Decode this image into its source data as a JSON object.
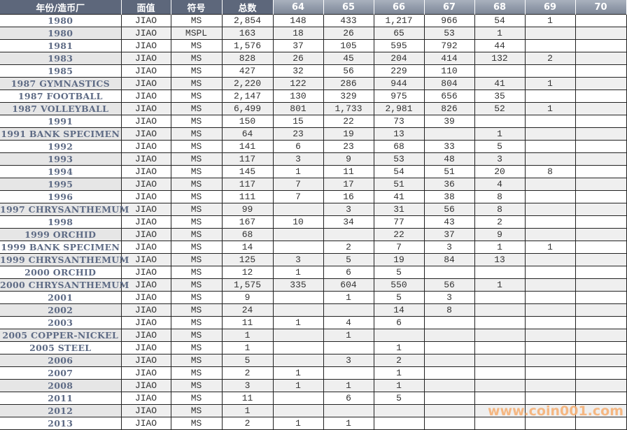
{
  "table": {
    "headers": [
      "年份/造币厂",
      "面值",
      "符号",
      "总数",
      "64",
      "65",
      "66",
      "67",
      "68",
      "69",
      "70"
    ],
    "rows": [
      [
        "1980",
        "JIAO",
        "MS",
        "2,854",
        "148",
        "433",
        "1,217",
        "966",
        "54",
        "1",
        ""
      ],
      [
        "1980",
        "JIAO",
        "MSPL",
        "163",
        "18",
        "26",
        "65",
        "53",
        "1",
        "",
        ""
      ],
      [
        "1981",
        "JIAO",
        "MS",
        "1,576",
        "37",
        "105",
        "595",
        "792",
        "44",
        "",
        ""
      ],
      [
        "1983",
        "JIAO",
        "MS",
        "828",
        "26",
        "45",
        "204",
        "414",
        "132",
        "2",
        ""
      ],
      [
        "1985",
        "JIAO",
        "MS",
        "427",
        "32",
        "56",
        "229",
        "110",
        "",
        "",
        ""
      ],
      [
        "1987 GYMNASTICS",
        "JIAO",
        "MS",
        "2,220",
        "122",
        "286",
        "944",
        "804",
        "41",
        "1",
        ""
      ],
      [
        "1987 FOOTBALL",
        "JIAO",
        "MS",
        "2,147",
        "130",
        "329",
        "975",
        "656",
        "35",
        "",
        ""
      ],
      [
        "1987 VOLLEYBALL",
        "JIAO",
        "MS",
        "6,499",
        "801",
        "1,733",
        "2,981",
        "826",
        "52",
        "1",
        ""
      ],
      [
        "1991",
        "JIAO",
        "MS",
        "150",
        "15",
        "22",
        "73",
        "39",
        "",
        "",
        ""
      ],
      [
        "1991 BANK SPECIMEN",
        "JIAO",
        "MS",
        "64",
        "23",
        "19",
        "13",
        "",
        "1",
        "",
        ""
      ],
      [
        "1992",
        "JIAO",
        "MS",
        "141",
        "6",
        "23",
        "68",
        "33",
        "5",
        "",
        ""
      ],
      [
        "1993",
        "JIAO",
        "MS",
        "117",
        "3",
        "9",
        "53",
        "48",
        "3",
        "",
        ""
      ],
      [
        "1994",
        "JIAO",
        "MS",
        "145",
        "1",
        "11",
        "54",
        "51",
        "20",
        "8",
        ""
      ],
      [
        "1995",
        "JIAO",
        "MS",
        "117",
        "7",
        "17",
        "51",
        "36",
        "4",
        "",
        ""
      ],
      [
        "1996",
        "JIAO",
        "MS",
        "111",
        "7",
        "16",
        "41",
        "38",
        "8",
        "",
        ""
      ],
      [
        "1997 CHRYSANTHEMUM",
        "JIAO",
        "MS",
        "99",
        "",
        "3",
        "31",
        "56",
        "8",
        "",
        ""
      ],
      [
        "1998",
        "JIAO",
        "MS",
        "167",
        "10",
        "34",
        "77",
        "43",
        "2",
        "",
        ""
      ],
      [
        "1999 ORCHID",
        "JIAO",
        "MS",
        "68",
        "",
        "",
        "22",
        "37",
        "9",
        "",
        ""
      ],
      [
        "1999 BANK SPECIMEN",
        "JIAO",
        "MS",
        "14",
        "",
        "2",
        "7",
        "3",
        "1",
        "1",
        ""
      ],
      [
        "1999 CHRYSANTHEMUM",
        "JIAO",
        "MS",
        "125",
        "3",
        "5",
        "19",
        "84",
        "13",
        "",
        ""
      ],
      [
        "2000 ORCHID",
        "JIAO",
        "MS",
        "12",
        "1",
        "6",
        "5",
        "",
        "",
        "",
        ""
      ],
      [
        "2000 CHRYSANTHEMUM",
        "JIAO",
        "MS",
        "1,575",
        "335",
        "604",
        "550",
        "56",
        "1",
        "",
        ""
      ],
      [
        "2001",
        "JIAO",
        "MS",
        "9",
        "",
        "1",
        "5",
        "3",
        "",
        "",
        ""
      ],
      [
        "2002",
        "JIAO",
        "MS",
        "24",
        "",
        "",
        "14",
        "8",
        "",
        "",
        ""
      ],
      [
        "2003",
        "JIAO",
        "MS",
        "11",
        "1",
        "4",
        "6",
        "",
        "",
        "",
        ""
      ],
      [
        "2005 COPPER-NICKEL",
        "JIAO",
        "MS",
        "1",
        "",
        "1",
        "",
        "",
        "",
        "",
        ""
      ],
      [
        "2005 STEEL",
        "JIAO",
        "MS",
        "1",
        "",
        "",
        "1",
        "",
        "",
        "",
        ""
      ],
      [
        "2006",
        "JIAO",
        "MS",
        "5",
        "",
        "3",
        "2",
        "",
        "",
        "",
        ""
      ],
      [
        "2007",
        "JIAO",
        "MS",
        "2",
        "1",
        "",
        "1",
        "",
        "",
        "",
        ""
      ],
      [
        "2008",
        "JIAO",
        "MS",
        "3",
        "1",
        "1",
        "1",
        "",
        "",
        "",
        ""
      ],
      [
        "2011",
        "JIAO",
        "MS",
        "11",
        "",
        "6",
        "5",
        "",
        "",
        "",
        ""
      ],
      [
        "2012",
        "JIAO",
        "MS",
        "1",
        "",
        "",
        "",
        "",
        "",
        "",
        ""
      ],
      [
        "2013",
        "JIAO",
        "MS",
        "2",
        "1",
        "1",
        "",
        "",
        "",
        "",
        ""
      ]
    ]
  },
  "watermark": "www.coin001.com",
  "colors": {
    "header_dark": "#5d677b",
    "header_light": "#8f98a7",
    "name_text": "#5e6b85",
    "watermark": "#f6b277"
  }
}
